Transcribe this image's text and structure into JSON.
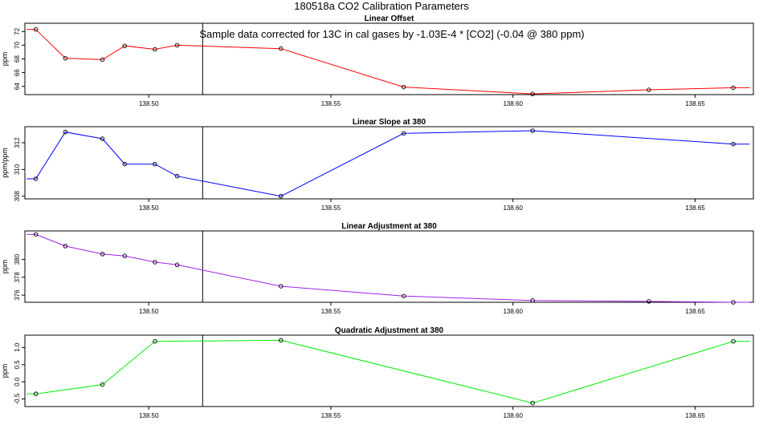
{
  "figure_title": "180518a   CO2 Calibration Parameters",
  "annotation": "Sample data corrected for 13C in cal gases by -1.03E-4 * [CO2] (-0.04 @ 380 ppm)",
  "chart_data": [
    {
      "type": "line",
      "title": "Linear Offset",
      "xlabel": "",
      "ylabel": "ppm",
      "color": "#ff0000",
      "xlim": [
        138.466,
        138.666
      ],
      "ylim": [
        62.8,
        73.2
      ],
      "xticks": [
        "138.50",
        "138.55",
        "138.60",
        "138.65"
      ],
      "yticks": [
        "64",
        "66",
        "68",
        "70",
        "72"
      ],
      "x": [
        138.469,
        138.4771,
        138.4873,
        138.4934,
        138.5017,
        138.5078,
        138.5363,
        138.57,
        138.6054,
        138.6373,
        138.6605
      ],
      "y": [
        72.3,
        68.1,
        67.9,
        69.9,
        69.4,
        70.0,
        69.5,
        63.9,
        62.9,
        63.5,
        63.8
      ],
      "start": [
        138.4665,
        72.3
      ],
      "end": [
        138.665,
        63.8
      ],
      "vline": 138.5148
    },
    {
      "type": "line",
      "title": "Linear Slope at 380",
      "xlabel": "",
      "ylabel": "ppm/ppm",
      "color": "#0000ff",
      "xlim": [
        138.466,
        138.666
      ],
      "ylim": [
        307.8,
        313.2
      ],
      "xticks": [
        "138.50",
        "138.55",
        "138.60",
        "138.65"
      ],
      "yticks": [
        "308",
        "310",
        "312"
      ],
      "x": [
        138.469,
        138.4771,
        138.4873,
        138.4934,
        138.5017,
        138.5078,
        138.5363,
        138.57,
        138.6054,
        138.6605
      ],
      "y": [
        309.3,
        312.8,
        312.3,
        310.4,
        310.4,
        309.5,
        308.0,
        312.7,
        312.9,
        311.9
      ],
      "start": [
        138.4665,
        309.3
      ],
      "end": [
        138.665,
        311.9
      ],
      "vline": 138.5148
    },
    {
      "type": "line",
      "title": "Linear Adjustment at 380",
      "xlabel": "",
      "ylabel": "ppm",
      "color": "#a020f0",
      "xlim": [
        138.466,
        138.666
      ],
      "ylim": [
        375.2,
        383.2
      ],
      "xticks": [
        "138.50",
        "138.55",
        "138.60",
        "138.65"
      ],
      "yticks": [
        "376",
        "378",
        "380"
      ],
      "x": [
        138.469,
        138.4771,
        138.4873,
        138.4934,
        138.5017,
        138.5078,
        138.5363,
        138.57,
        138.6054,
        138.6373,
        138.6605
      ],
      "y": [
        382.8,
        381.5,
        380.6,
        380.4,
        379.7,
        379.4,
        377.0,
        375.9,
        375.4,
        375.3,
        375.2
      ],
      "start": [
        138.4665,
        382.8
      ],
      "end": [
        138.665,
        375.2
      ],
      "vline": 138.5148
    },
    {
      "type": "line",
      "title": "Quadratic Adjustment at 380",
      "xlabel": "",
      "ylabel": "ppm",
      "color": "#00ee00",
      "xlim": [
        138.466,
        138.666
      ],
      "ylim": [
        -0.72,
        1.36
      ],
      "xticks": [
        "138.50",
        "138.55",
        "138.60",
        "138.65"
      ],
      "yticks": [
        "-0.5",
        "0.0",
        "0.5",
        "1.0"
      ],
      "x": [
        138.469,
        138.4873,
        138.5017,
        138.5363,
        138.6054,
        138.6605
      ],
      "y": [
        -0.35,
        -0.08,
        1.18,
        1.21,
        -0.62,
        1.18
      ],
      "start": [
        138.4665,
        -0.35
      ],
      "end": [
        138.665,
        1.18
      ],
      "vline": 138.5148
    }
  ]
}
